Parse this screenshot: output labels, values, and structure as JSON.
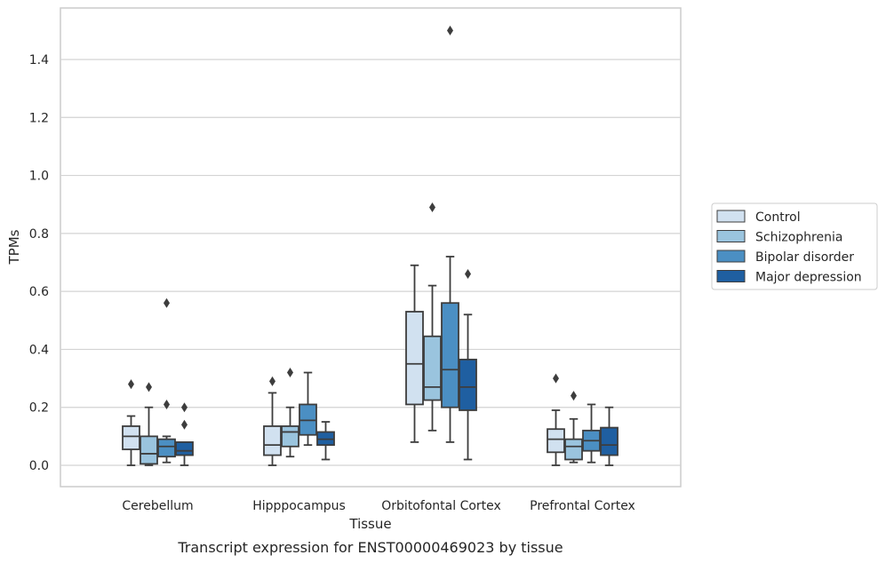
{
  "chart_data": {
    "type": "box",
    "caption": "Transcript expression for ENST00000469023 by tissue",
    "xlabel": "Tissue",
    "ylabel": "TPMs",
    "ylim": [
      -0.07,
      1.58
    ],
    "yticks": [
      0.0,
      0.2,
      0.4,
      0.6,
      0.8,
      1.0,
      1.2,
      1.4
    ],
    "ytick_labels": [
      "0.0",
      "0.2",
      "0.4",
      "0.6",
      "0.8",
      "1.0",
      "1.2",
      "1.4"
    ],
    "grid": "horizontal",
    "legend_position": "right",
    "categories": [
      "Cerebellum",
      "Hipppocampus",
      "Orbitofontal Cortex",
      "Prefrontal Cortex"
    ],
    "series": [
      {
        "name": "Control",
        "color": "#d1e1f0",
        "boxes": [
          {
            "whislo": 0.0,
            "q1": 0.055,
            "med": 0.1,
            "q3": 0.135,
            "whishi": 0.17,
            "fliers": [
              0.28
            ]
          },
          {
            "whislo": 0.0,
            "q1": 0.035,
            "med": 0.07,
            "q3": 0.135,
            "whishi": 0.25,
            "fliers": [
              0.29
            ]
          },
          {
            "whislo": 0.08,
            "q1": 0.21,
            "med": 0.35,
            "q3": 0.53,
            "whishi": 0.69,
            "fliers": []
          },
          {
            "whislo": 0.0,
            "q1": 0.045,
            "med": 0.09,
            "q3": 0.125,
            "whishi": 0.19,
            "fliers": [
              0.3
            ]
          }
        ]
      },
      {
        "name": "Schizophrenia",
        "color": "#9ac4de",
        "boxes": [
          {
            "whislo": 0.0,
            "q1": 0.005,
            "med": 0.04,
            "q3": 0.1,
            "whishi": 0.2,
            "fliers": [
              0.27
            ]
          },
          {
            "whislo": 0.03,
            "q1": 0.065,
            "med": 0.115,
            "q3": 0.135,
            "whishi": 0.2,
            "fliers": [
              0.32
            ]
          },
          {
            "whislo": 0.12,
            "q1": 0.225,
            "med": 0.27,
            "q3": 0.445,
            "whishi": 0.62,
            "fliers": [
              0.89
            ]
          },
          {
            "whislo": 0.01,
            "q1": 0.02,
            "med": 0.065,
            "q3": 0.09,
            "whishi": 0.16,
            "fliers": [
              0.24
            ]
          }
        ]
      },
      {
        "name": "Bipolar disorder",
        "color": "#4b8fc3",
        "boxes": [
          {
            "whislo": 0.01,
            "q1": 0.03,
            "med": 0.065,
            "q3": 0.09,
            "whishi": 0.1,
            "fliers": [
              0.21,
              0.56
            ]
          },
          {
            "whislo": 0.07,
            "q1": 0.105,
            "med": 0.155,
            "q3": 0.21,
            "whishi": 0.32,
            "fliers": []
          },
          {
            "whislo": 0.08,
            "q1": 0.2,
            "med": 0.33,
            "q3": 0.56,
            "whishi": 0.72,
            "fliers": [
              1.5
            ]
          },
          {
            "whislo": 0.01,
            "q1": 0.05,
            "med": 0.085,
            "q3": 0.12,
            "whishi": 0.21,
            "fliers": []
          }
        ]
      },
      {
        "name": "Major depression",
        "color": "#1f5fa1",
        "boxes": [
          {
            "whislo": 0.0,
            "q1": 0.035,
            "med": 0.05,
            "q3": 0.08,
            "whishi": 0.08,
            "fliers": [
              0.14,
              0.2
            ]
          },
          {
            "whislo": 0.02,
            "q1": 0.07,
            "med": 0.09,
            "q3": 0.115,
            "whishi": 0.15,
            "fliers": []
          },
          {
            "whislo": 0.02,
            "q1": 0.19,
            "med": 0.27,
            "q3": 0.365,
            "whishi": 0.52,
            "fliers": [
              0.66
            ]
          },
          {
            "whislo": 0.0,
            "q1": 0.035,
            "med": 0.07,
            "q3": 0.13,
            "whishi": 0.2,
            "fliers": []
          }
        ]
      }
    ]
  }
}
